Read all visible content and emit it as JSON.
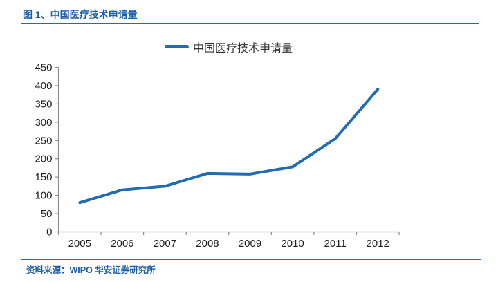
{
  "header": {
    "title": "图 1、中国医疗技术申请量"
  },
  "legend": {
    "label": "中国医疗技术申请量"
  },
  "footer": {
    "source": "资料来源：WIPO 华安证券研究所"
  },
  "colors": {
    "accent_text_blue": "#1a5ea8",
    "rule_blue": "#1f6cb4",
    "series_line_blue": "#1f6cb4",
    "axis_line_gray": "#8c8c8c",
    "axis_label_color": "#1f1f1f"
  },
  "chart_data": {
    "type": "line",
    "title": "图 1、中国医疗技术申请量",
    "categories": [
      "2005",
      "2006",
      "2007",
      "2008",
      "2009",
      "2010",
      "2011",
      "2012"
    ],
    "series": [
      {
        "name": "中国医疗技术申请量",
        "values": [
          80,
          115,
          125,
          160,
          158,
          178,
          255,
          390
        ],
        "color": "#1f6cb4"
      }
    ],
    "xlabel": "",
    "ylabel": "",
    "ylim": [
      0,
      450
    ],
    "ytick_step": 50,
    "grid": false,
    "legend_position": "top-center"
  }
}
